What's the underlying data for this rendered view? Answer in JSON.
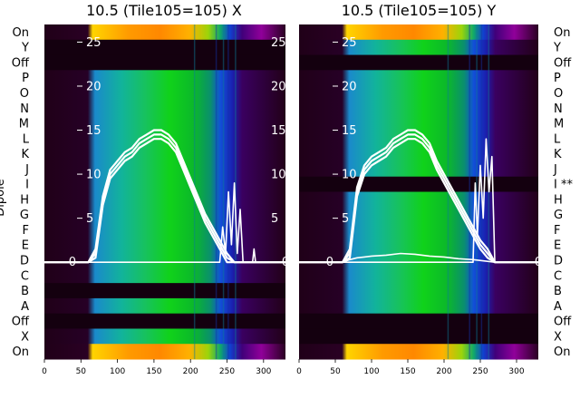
{
  "chart_data": [
    {
      "type": "heatmap",
      "title": "10.5 (Tile105=105) X",
      "ylabel": "Dipole",
      "dipole_labels": [
        "On",
        "Y",
        "Off",
        "P",
        "O",
        "N",
        "M",
        "L",
        "K",
        "J",
        "I",
        "H",
        "G",
        "F",
        "E",
        "D",
        "C",
        "B",
        "A",
        "Off",
        "X",
        "On"
      ],
      "xlim": [
        0,
        330
      ],
      "x_ticks": [
        0,
        50,
        100,
        150,
        200,
        250,
        300
      ],
      "overlay_ylim": [
        -11,
        27
      ],
      "overlay_ticks": [
        0,
        5,
        10,
        15,
        20,
        25
      ],
      "dark_rows": [
        "Y",
        "Off",
        "B",
        "Off"
      ],
      "series": [
        {
          "values": [
            [
              0,
              0
            ],
            [
              60,
              0
            ],
            [
              70,
              1
            ],
            [
              80,
              7
            ],
            [
              90,
              10
            ],
            [
              100,
              11
            ],
            [
              110,
              12
            ],
            [
              120,
              12.5
            ],
            [
              130,
              13.5
            ],
            [
              140,
              14
            ],
            [
              150,
              14.5
            ],
            [
              160,
              14.5
            ],
            [
              170,
              14
            ],
            [
              180,
              13
            ],
            [
              190,
              11
            ],
            [
              200,
              9
            ],
            [
              210,
              7
            ],
            [
              220,
              5
            ],
            [
              230,
              3.5
            ],
            [
              240,
              2
            ],
            [
              250,
              0.5
            ],
            [
              260,
              0
            ],
            [
              330,
              0
            ]
          ]
        },
        {
          "values": [
            [
              0,
              0
            ],
            [
              60,
              0
            ],
            [
              70,
              1.5
            ],
            [
              80,
              7.5
            ],
            [
              90,
              10.5
            ],
            [
              100,
              11.5
            ],
            [
              110,
              12.5
            ],
            [
              120,
              13
            ],
            [
              130,
              14
            ],
            [
              140,
              14.5
            ],
            [
              150,
              15
            ],
            [
              160,
              15
            ],
            [
              170,
              14.5
            ],
            [
              180,
              13.5
            ],
            [
              190,
              11.5
            ],
            [
              200,
              9.5
            ],
            [
              210,
              7.5
            ],
            [
              220,
              5.5
            ],
            [
              230,
              4
            ],
            [
              240,
              2.5
            ],
            [
              250,
              1
            ],
            [
              260,
              0
            ],
            [
              330,
              0
            ]
          ]
        },
        {
          "values": [
            [
              0,
              0
            ],
            [
              60,
              0
            ],
            [
              70,
              0.5
            ],
            [
              80,
              6.5
            ],
            [
              90,
              9.5
            ],
            [
              100,
              10.5
            ],
            [
              110,
              11.5
            ],
            [
              120,
              12
            ],
            [
              130,
              13
            ],
            [
              140,
              13.5
            ],
            [
              150,
              14
            ],
            [
              160,
              14
            ],
            [
              170,
              13.5
            ],
            [
              180,
              12.5
            ],
            [
              190,
              10.5
            ],
            [
              200,
              8.5
            ],
            [
              210,
              6.5
            ],
            [
              220,
              4.5
            ],
            [
              230,
              3
            ],
            [
              240,
              1.5
            ],
            [
              250,
              0
            ],
            [
              330,
              0
            ]
          ]
        },
        {
          "values": [
            [
              0,
              0
            ],
            [
              240,
              0
            ],
            [
              244,
              4
            ],
            [
              248,
              1
            ],
            [
              252,
              8
            ],
            [
              256,
              2
            ],
            [
              260,
              9
            ],
            [
              264,
              1
            ],
            [
              268,
              6
            ],
            [
              272,
              0
            ],
            [
              285,
              0
            ],
            [
              287,
              1.5
            ],
            [
              289,
              0
            ],
            [
              330,
              0
            ]
          ]
        }
      ]
    },
    {
      "type": "heatmap",
      "title": "10.5 (Tile105=105) Y",
      "ylabel": "",
      "dipole_labels": [
        "On",
        "Y",
        "Off",
        "P",
        "O",
        "N",
        "M",
        "L",
        "K",
        "J",
        "I **",
        "H",
        "G",
        "F",
        "E",
        "D",
        "C",
        "B",
        "A",
        "Off",
        "X",
        "On"
      ],
      "xlim": [
        0,
        330
      ],
      "x_ticks": [
        0,
        50,
        100,
        150,
        200,
        250,
        300
      ],
      "overlay_ylim": [
        -11,
        27
      ],
      "overlay_ticks": [
        0,
        5,
        10,
        15,
        20,
        25
      ],
      "dark_rows": [
        "Off",
        "I **",
        "Off",
        "X"
      ],
      "series": [
        {
          "values": [
            [
              0,
              0
            ],
            [
              60,
              0
            ],
            [
              70,
              1
            ],
            [
              80,
              8
            ],
            [
              90,
              10.5
            ],
            [
              100,
              11.5
            ],
            [
              110,
              12
            ],
            [
              120,
              12.5
            ],
            [
              130,
              13.5
            ],
            [
              140,
              14
            ],
            [
              150,
              14.5
            ],
            [
              160,
              14.5
            ],
            [
              170,
              14
            ],
            [
              180,
              13
            ],
            [
              190,
              11
            ],
            [
              200,
              9.5
            ],
            [
              210,
              8
            ],
            [
              220,
              6.5
            ],
            [
              230,
              5
            ],
            [
              240,
              3.5
            ],
            [
              250,
              2
            ],
            [
              260,
              1
            ],
            [
              270,
              0
            ],
            [
              330,
              0
            ]
          ]
        },
        {
          "values": [
            [
              0,
              0
            ],
            [
              60,
              0
            ],
            [
              70,
              1.5
            ],
            [
              80,
              8.5
            ],
            [
              90,
              11
            ],
            [
              100,
              12
            ],
            [
              110,
              12.5
            ],
            [
              120,
              13
            ],
            [
              130,
              14
            ],
            [
              140,
              14.5
            ],
            [
              150,
              15
            ],
            [
              160,
              15
            ],
            [
              170,
              14.5
            ],
            [
              180,
              13.5
            ],
            [
              190,
              11.5
            ],
            [
              200,
              10
            ],
            [
              210,
              8.5
            ],
            [
              220,
              7
            ],
            [
              230,
              5.5
            ],
            [
              240,
              4
            ],
            [
              250,
              2.5
            ],
            [
              260,
              1.5
            ],
            [
              270,
              0
            ],
            [
              330,
              0
            ]
          ]
        },
        {
          "values": [
            [
              0,
              0
            ],
            [
              60,
              0
            ],
            [
              70,
              0.5
            ],
            [
              80,
              7.5
            ],
            [
              90,
              10
            ],
            [
              100,
              11
            ],
            [
              110,
              11.5
            ],
            [
              120,
              12
            ],
            [
              130,
              13
            ],
            [
              140,
              13.5
            ],
            [
              150,
              14
            ],
            [
              160,
              14
            ],
            [
              170,
              13.5
            ],
            [
              180,
              12.5
            ],
            [
              190,
              10.5
            ],
            [
              200,
              9
            ],
            [
              210,
              7.5
            ],
            [
              220,
              6
            ],
            [
              230,
              4.5
            ],
            [
              240,
              3
            ],
            [
              250,
              1.5
            ],
            [
              260,
              0.5
            ],
            [
              270,
              0
            ],
            [
              330,
              0
            ]
          ]
        },
        {
          "values": [
            [
              0,
              0
            ],
            [
              240,
              0
            ],
            [
              243,
              9
            ],
            [
              246,
              3
            ],
            [
              250,
              11
            ],
            [
              254,
              5
            ],
            [
              258,
              14
            ],
            [
              262,
              8
            ],
            [
              266,
              12
            ],
            [
              270,
              0
            ],
            [
              330,
              0
            ]
          ]
        },
        {
          "values": [
            [
              0,
              0
            ],
            [
              60,
              0
            ],
            [
              70,
              0.3
            ],
            [
              80,
              0.5
            ],
            [
              90,
              0.6
            ],
            [
              100,
              0.7
            ],
            [
              120,
              0.8
            ],
            [
              140,
              1
            ],
            [
              160,
              0.9
            ],
            [
              180,
              0.7
            ],
            [
              200,
              0.6
            ],
            [
              220,
              0.4
            ],
            [
              240,
              0.3
            ],
            [
              260,
              0.1
            ],
            [
              270,
              0
            ],
            [
              330,
              0
            ]
          ]
        }
      ]
    }
  ]
}
